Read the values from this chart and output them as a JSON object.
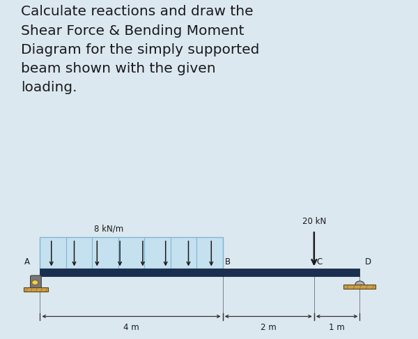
{
  "bg_color": "#dce8f0",
  "diagram_bg": "#ffffff",
  "text_color": "#1a1a1a",
  "title_lines": [
    "Calculate reactions and draw the",
    "Shear Force & Bending Moment",
    "Diagram for the simply supported",
    "beam shown with the given",
    "loading."
  ],
  "title_fontsize": 14.5,
  "beam_color": "#1a2e50",
  "udl_color": "#c5e0ee",
  "udl_border": "#7ab8d4",
  "udl_label": "8 kN/m",
  "point_load_label": "20 kN",
  "labels": [
    "A",
    "B",
    "C",
    "D"
  ],
  "dims": [
    {
      "label": "4 m"
    },
    {
      "label": "2 m"
    },
    {
      "label": "1 m"
    }
  ],
  "support_gray": "#808080",
  "support_body": "#909090",
  "wood_color": "#c8a04a",
  "wood_dark": "#a07828",
  "yellow_circle": "#e8d060",
  "arrow_color": "#1a1a1a"
}
